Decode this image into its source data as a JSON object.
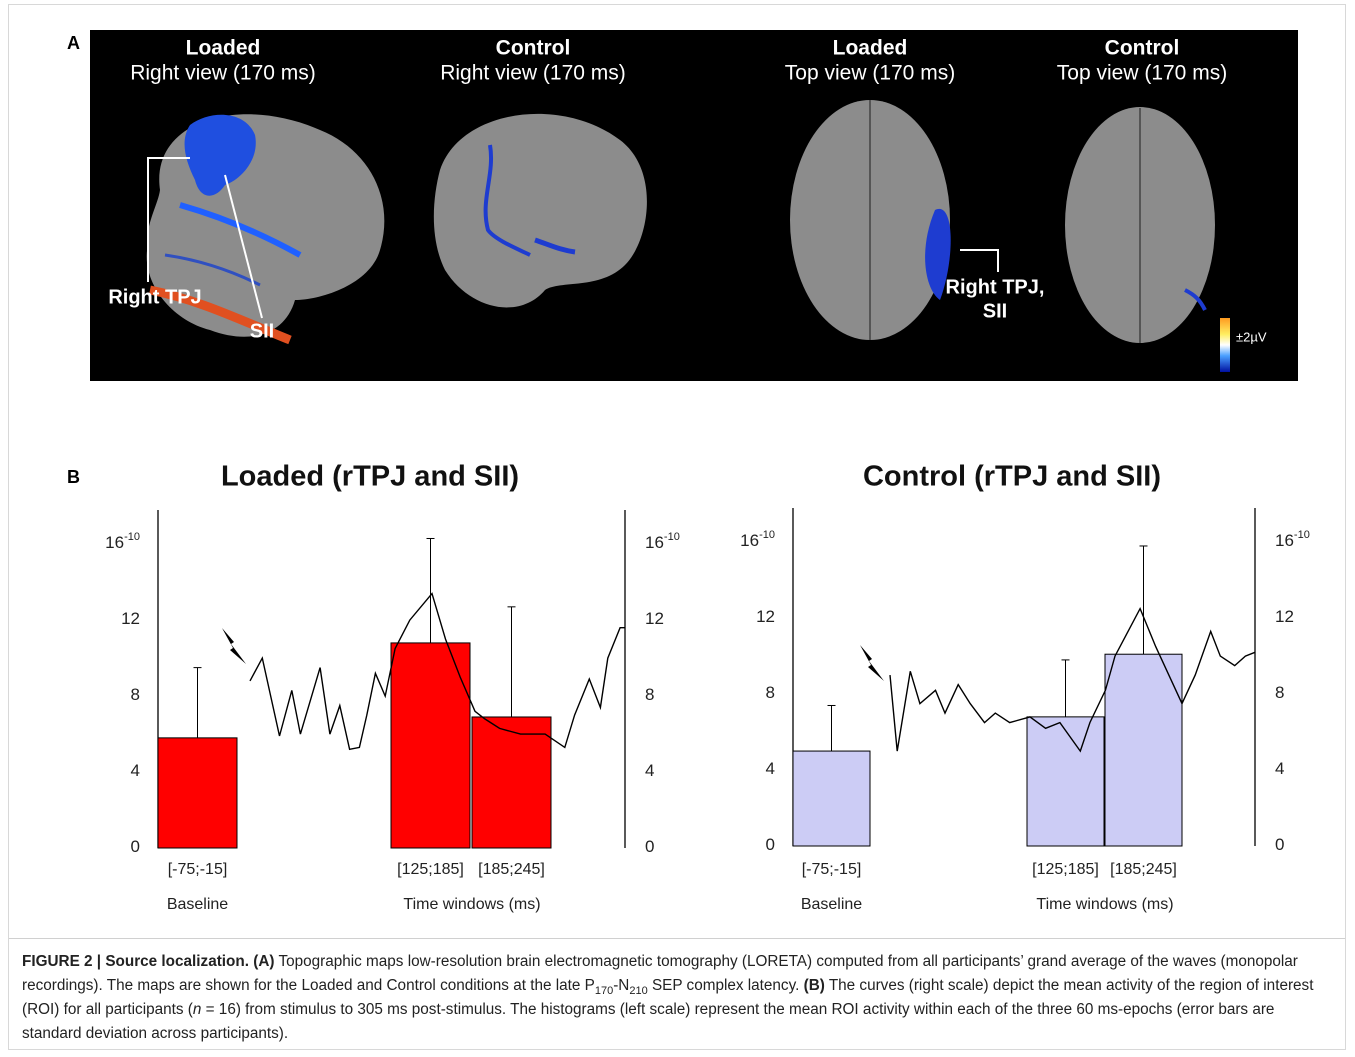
{
  "panel_a": {
    "label": "A",
    "views": [
      {
        "condition": "Loaded",
        "view": "Right view (170 ms)"
      },
      {
        "condition": "Control",
        "view": "Right view (170 ms)"
      },
      {
        "condition": "Loaded",
        "view": "Top view (170 ms)"
      },
      {
        "condition": "Control",
        "view": "Top view (170 ms)"
      }
    ],
    "annotations": [
      "Right TPJ",
      "SII",
      "Right TPJ,",
      "SII"
    ],
    "scale_label": "±2µV"
  },
  "panel_b": {
    "label": "B"
  },
  "chart_data": [
    {
      "type": "bar",
      "title": "Loaded (rTPJ and SII)",
      "categories": [
        "[-75;-15]",
        "[125;185]",
        "[185;245]"
      ],
      "baseline_label": "Baseline",
      "xlabel": "Time windows (ms)",
      "bars": {
        "color": "#ff0000",
        "values": [
          5.8,
          10.8,
          6.9
        ],
        "errors": [
          3.7,
          5.5,
          5.8
        ]
      },
      "curve": {
        "axis": "y2",
        "color": "#000000",
        "x": [
          0,
          10,
          24,
          34,
          41,
          57,
          65,
          73,
          81,
          89,
          95,
          102,
          110,
          118,
          130,
          148,
          159,
          171,
          183,
          191,
          203,
          220,
          240,
          256,
          264,
          276,
          285,
          291,
          301,
          305
        ],
        "values": [
          8.8,
          10,
          5.9,
          8.3,
          6,
          9.5,
          6,
          7.5,
          5.2,
          5.3,
          7,
          9.2,
          8,
          10.5,
          12,
          13.4,
          11,
          9,
          7.2,
          6.8,
          6.3,
          6,
          6,
          5.3,
          7,
          8.9,
          7.4,
          10,
          11.6,
          11.6
        ]
      },
      "ylim": [
        0,
        17.8
      ],
      "yticks": [
        0,
        4,
        8,
        12,
        {
          "value": 16,
          "label": "16",
          "sup": "-10"
        }
      ],
      "y2lim": [
        0,
        17.8
      ],
      "y2ticks": [
        0,
        4,
        8,
        12,
        {
          "value": 16,
          "label": "16",
          "sup": "-10"
        }
      ]
    },
    {
      "type": "bar",
      "title": "Control (rTPJ and SII)",
      "categories": [
        "[-75;-15]",
        "[125;185]",
        "[185;245]"
      ],
      "baseline_label": "Baseline",
      "xlabel": "Time windows (ms)",
      "bars": {
        "color": "#ccccf5",
        "values": [
          5.0,
          6.8,
          10.1
        ],
        "errors": [
          2.4,
          3.0,
          5.7
        ]
      },
      "curve": {
        "axis": "y2",
        "color": "#000000",
        "x": [
          0,
          6,
          17,
          25,
          38,
          46,
          57,
          67,
          79,
          88,
          100,
          117,
          130,
          142,
          159,
          167,
          180,
          188,
          209,
          222,
          244,
          255,
          268,
          276,
          288,
          297,
          305
        ],
        "values": [
          9,
          5,
          9.2,
          7.5,
          8.2,
          7,
          8.5,
          7.5,
          6.5,
          7,
          6.5,
          6.8,
          6.2,
          6.5,
          5,
          6.5,
          8.2,
          10,
          12.5,
          10.5,
          7.5,
          9,
          11.3,
          10,
          9.5,
          10,
          10.2
        ]
      },
      "ylim": [
        0,
        17.8
      ],
      "yticks": [
        0,
        4,
        8,
        12,
        {
          "value": 16,
          "label": "16",
          "sup": "-10"
        }
      ],
      "y2lim": [
        0,
        17.8
      ],
      "y2ticks": [
        0,
        4,
        8,
        12,
        {
          "value": 16,
          "label": "16",
          "sup": "-10"
        }
      ]
    }
  ],
  "caption": [
    {
      "text": "FIGURE 2 | Source localization.",
      "style": "bold"
    },
    {
      "text": " "
    },
    {
      "text": "(A)",
      "style": "bold"
    },
    {
      "text": " Topographic maps low-resolution brain electromagnetic tomography (LORETA) computed from all participants’ grand average of the waves (monopolar recordings). The maps are shown for the Loaded and Control conditions at the late P"
    },
    {
      "text": "170",
      "style": "sub"
    },
    {
      "text": "-N"
    },
    {
      "text": "210",
      "style": "sub"
    },
    {
      "text": " SEP complex latency. "
    },
    {
      "text": "(B)",
      "style": "bold"
    },
    {
      "text": " The curves (right scale) depict the mean activity of the region of interest (ROI) for all participants ("
    },
    {
      "text": "n",
      "style": "italic"
    },
    {
      "text": " = 16) from stimulus to 305 ms post-stimulus. The histograms (left scale) represent the mean ROI activity within each of the three 60 ms-epochs (error bars are standard deviation across participants)."
    }
  ]
}
